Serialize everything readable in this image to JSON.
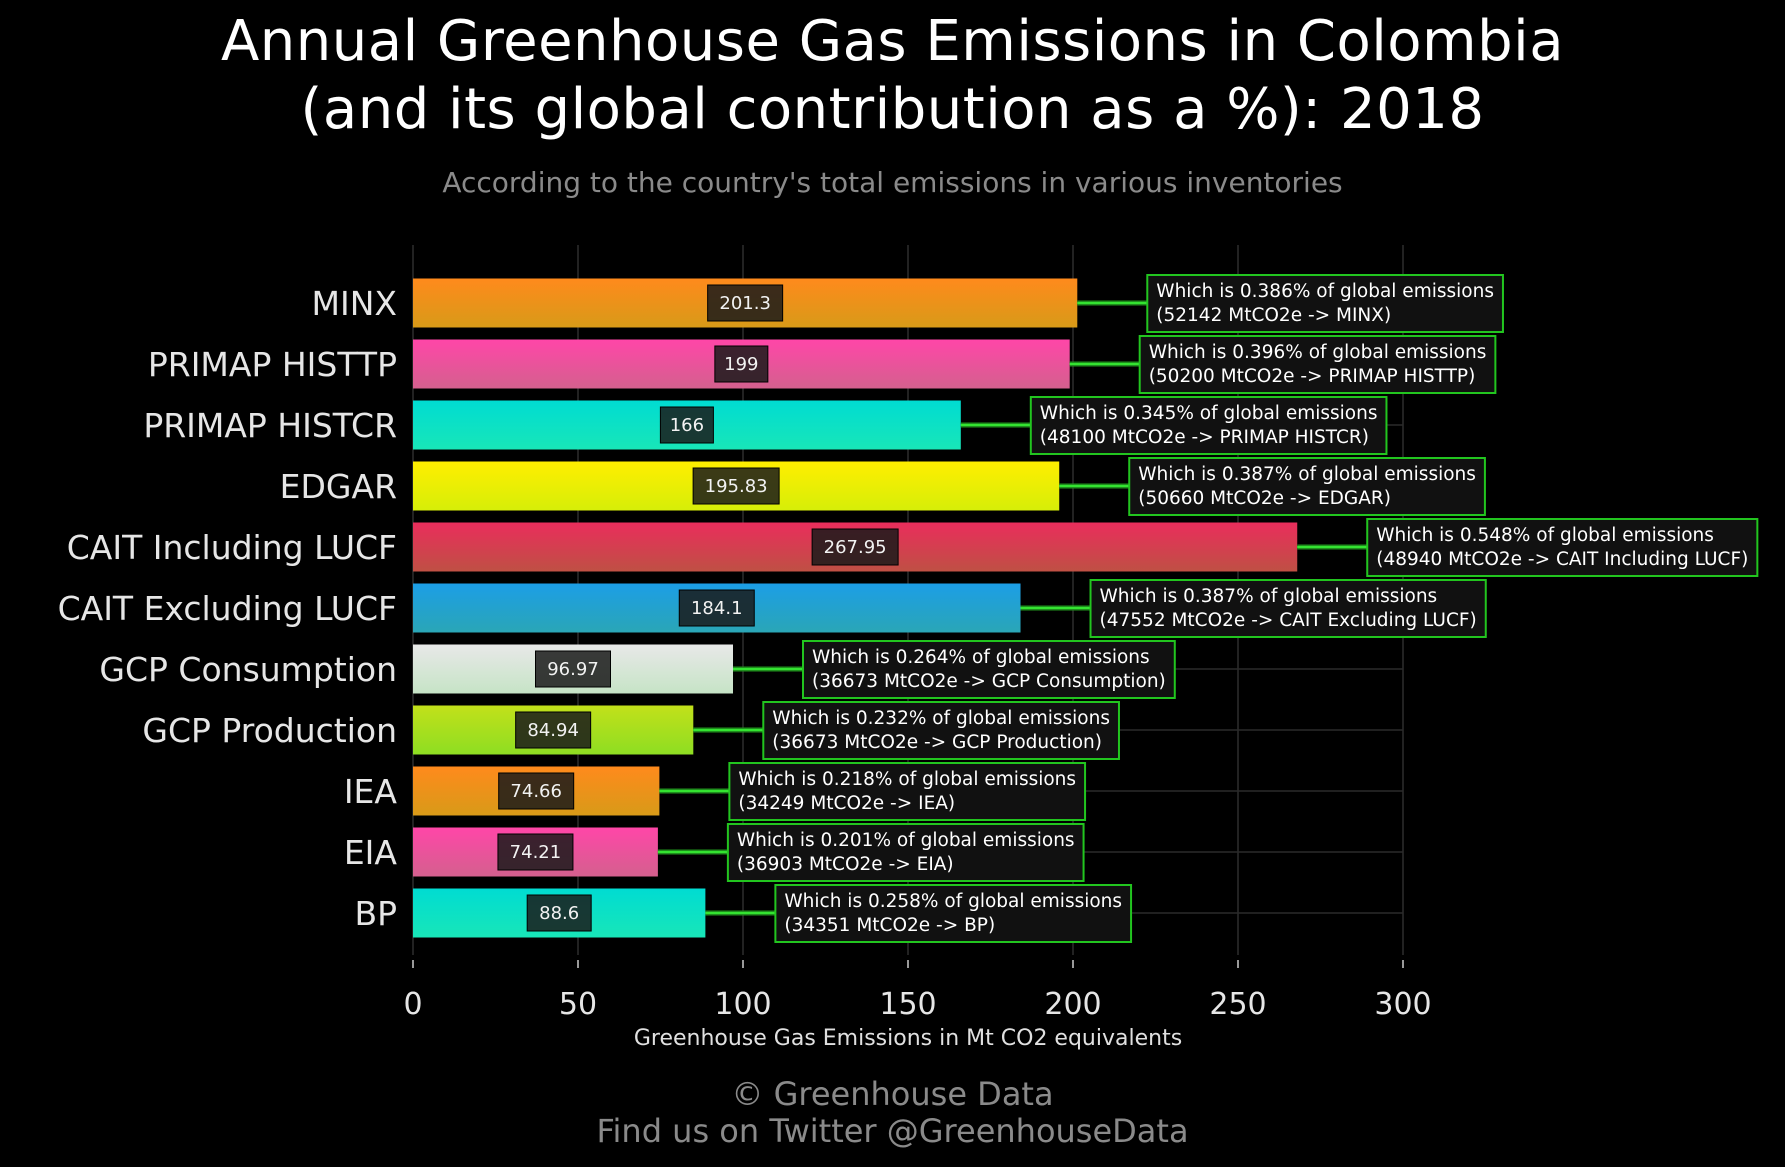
{
  "title_line1": "Annual Greenhouse Gas Emissions in Colombia",
  "title_line2": "(and its global contribution as a %): 2018",
  "subtitle": "According to the country's total emissions in various inventories",
  "credit_line1": "© Greenhouse Data",
  "credit_line2": "Find us on Twitter @GreenhouseData",
  "chart_data": {
    "type": "bar",
    "orientation": "horizontal",
    "xlabel": "Greenhouse Gas Emissions in Mt CO2 equivalents",
    "xlim": [
      0,
      300
    ],
    "xticks": [
      0,
      50,
      100,
      150,
      200,
      250,
      300
    ],
    "grid": true,
    "categories": [
      "MINX",
      "PRIMAP HISTTP",
      "PRIMAP HISTCR",
      "EDGAR",
      "CAIT Including LUCF",
      "CAIT Excluding LUCF",
      "GCP Consumption",
      "GCP Production",
      "IEA",
      "EIA",
      "BP"
    ],
    "values": [
      201.3,
      199,
      166,
      195.83,
      267.95,
      184.1,
      96.97,
      84.94,
      74.66,
      74.21,
      88.6
    ],
    "value_labels": [
      "201.3",
      "199",
      "166",
      "195.83",
      "267.95",
      "184.1",
      "96.97",
      "84.94",
      "74.66",
      "74.21",
      "88.6"
    ],
    "annotations": [
      [
        "Which is 0.386% of global emissions",
        "(52142 MtCO2e -> MINX)"
      ],
      [
        "Which is 0.396% of global emissions",
        "(50200 MtCO2e -> PRIMAP HISTTP)"
      ],
      [
        "Which is 0.345% of global emissions",
        "(48100 MtCO2e -> PRIMAP HISTCR)"
      ],
      [
        "Which is 0.387% of global emissions",
        "(50660 MtCO2e -> EDGAR)"
      ],
      [
        "Which is 0.548% of global emissions",
        "(48940 MtCO2e -> CAIT Including LUCF)"
      ],
      [
        "Which is 0.387% of global emissions",
        "(47552 MtCO2e -> CAIT Excluding LUCF)"
      ],
      [
        "Which is 0.264% of global emissions",
        "(36673 MtCO2e -> GCP Consumption)"
      ],
      [
        "Which is 0.232% of global emissions",
        "(36673 MtCO2e -> GCP Production)"
      ],
      [
        "Which is 0.218% of global emissions",
        "(34249 MtCO2e -> IEA)"
      ],
      [
        "Which is 0.201% of global emissions",
        "(36903 MtCO2e -> EIA)"
      ],
      [
        "Which is 0.258% of global emissions",
        "(34351 MtCO2e -> BP)"
      ]
    ],
    "colors": [
      [
        "#ff8a1c",
        "#d89a18"
      ],
      [
        "#ff46a8",
        "#d4608e"
      ],
      [
        "#00dcd2",
        "#18e6b8"
      ],
      [
        "#ffee00",
        "#d6ee08"
      ],
      [
        "#ea2d5c",
        "#bf5044"
      ],
      [
        "#1c9ee6",
        "#2aa6b6"
      ],
      [
        "#e8e8e8",
        "#c6e4c6"
      ],
      [
        "#c2e01a",
        "#8ede22"
      ],
      [
        "#ff8a1c",
        "#d89a18"
      ],
      [
        "#ff46a8",
        "#d4608e"
      ],
      [
        "#00dcd2",
        "#18e6b8"
      ]
    ],
    "annotation_border_color": "#22c51f",
    "label_box_color": "#1a1a1a"
  }
}
